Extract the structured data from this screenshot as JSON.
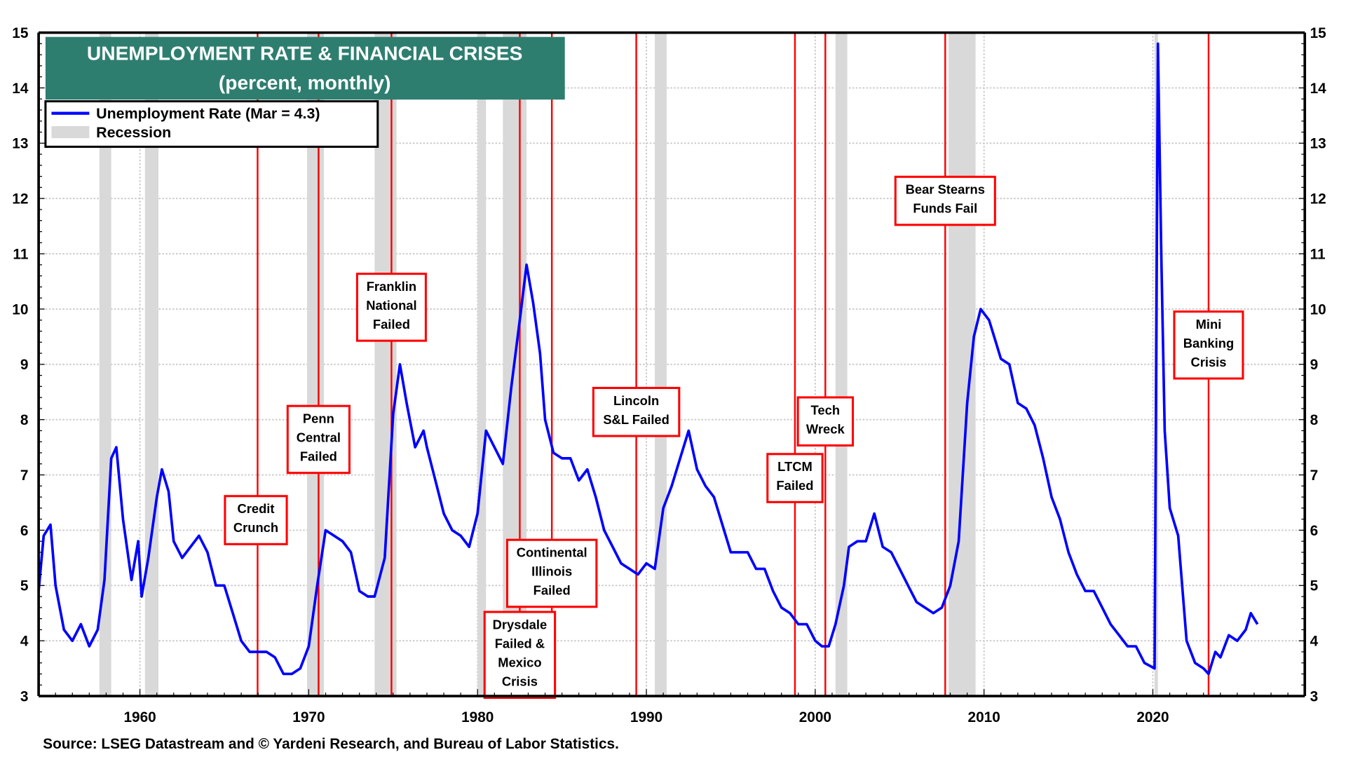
{
  "chart_data": {
    "type": "line",
    "title": "UNEMPLOYMENT RATE & FINANCIAL CRISES",
    "subtitle": "(percent, monthly)",
    "xlabel": "",
    "ylabel": "",
    "xlim": [
      1954,
      2029
    ],
    "ylim": [
      3,
      15
    ],
    "x_ticks": [
      "1960",
      "1970",
      "1980",
      "1990",
      "2000",
      "2010",
      "2020"
    ],
    "y_ticks": [
      "3",
      "4",
      "5",
      "6",
      "7",
      "8",
      "9",
      "10",
      "11",
      "12",
      "13",
      "14",
      "15"
    ],
    "grid": true,
    "legend_placement": "top-left",
    "legend": [
      "Unemployment Rate (Mar = 4.3)",
      "Recession"
    ],
    "colors": {
      "series": "#0000ff",
      "recession": "#d9d9d9",
      "crisis": "#ff0000",
      "title_bg": "#2e7e70"
    },
    "series": [
      {
        "name": "Unemployment Rate",
        "x": [
          1954.0,
          1954.3,
          1954.7,
          1955.0,
          1955.5,
          1956.0,
          1956.5,
          1957.0,
          1957.5,
          1957.9,
          1958.3,
          1958.6,
          1959.0,
          1959.5,
          1959.9,
          1960.1,
          1960.5,
          1961.0,
          1961.3,
          1961.7,
          1962.0,
          1962.5,
          1963.0,
          1963.5,
          1964.0,
          1964.5,
          1965.0,
          1965.5,
          1966.0,
          1966.5,
          1967.0,
          1967.5,
          1968.0,
          1968.5,
          1969.0,
          1969.5,
          1970.0,
          1970.5,
          1971.0,
          1971.5,
          1972.0,
          1972.5,
          1973.0,
          1973.5,
          1973.9,
          1974.5,
          1975.0,
          1975.4,
          1975.8,
          1976.3,
          1976.8,
          1977.0,
          1977.5,
          1978.0,
          1978.5,
          1979.0,
          1979.5,
          1980.0,
          1980.5,
          1981.0,
          1981.5,
          1982.0,
          1982.5,
          1982.9,
          1983.3,
          1983.7,
          1984.0,
          1984.5,
          1985.0,
          1985.5,
          1986.0,
          1986.5,
          1987.0,
          1987.5,
          1988.0,
          1988.5,
          1989.0,
          1989.5,
          1990.0,
          1990.5,
          1991.0,
          1991.5,
          1992.0,
          1992.5,
          1993.0,
          1993.5,
          1994.0,
          1994.5,
          1995.0,
          1995.5,
          1996.0,
          1996.5,
          1997.0,
          1997.5,
          1998.0,
          1998.5,
          1999.0,
          1999.5,
          2000.0,
          2000.4,
          2000.8,
          2001.2,
          2001.7,
          2002.0,
          2002.5,
          2003.0,
          2003.5,
          2004.0,
          2004.5,
          2005.0,
          2005.5,
          2006.0,
          2006.5,
          2007.0,
          2007.5,
          2008.0,
          2008.5,
          2009.0,
          2009.4,
          2009.8,
          2010.3,
          2010.7,
          2011.0,
          2011.5,
          2012.0,
          2012.5,
          2013.0,
          2013.5,
          2014.0,
          2014.5,
          2015.0,
          2015.5,
          2016.0,
          2016.5,
          2017.0,
          2017.5,
          2018.0,
          2018.5,
          2019.0,
          2019.5,
          2020.1,
          2020.3,
          2020.5,
          2020.7,
          2021.0,
          2021.5,
          2022.0,
          2022.5,
          2023.0,
          2023.3,
          2023.7,
          2024.0,
          2024.5,
          2025.0,
          2025.5,
          2025.8,
          2026.2
        ],
        "y": [
          4.9,
          5.9,
          6.1,
          5.0,
          4.2,
          4.0,
          4.3,
          3.9,
          4.2,
          5.1,
          7.3,
          7.5,
          6.2,
          5.1,
          5.8,
          4.8,
          5.5,
          6.6,
          7.1,
          6.7,
          5.8,
          5.5,
          5.7,
          5.9,
          5.6,
          5.0,
          5.0,
          4.5,
          4.0,
          3.8,
          3.8,
          3.8,
          3.7,
          3.4,
          3.4,
          3.5,
          3.9,
          5.0,
          6.0,
          5.9,
          5.8,
          5.6,
          4.9,
          4.8,
          4.8,
          5.5,
          8.1,
          9.0,
          8.3,
          7.5,
          7.8,
          7.5,
          6.9,
          6.3,
          6.0,
          5.9,
          5.7,
          6.3,
          7.8,
          7.5,
          7.2,
          8.6,
          9.8,
          10.8,
          10.1,
          9.2,
          8.0,
          7.4,
          7.3,
          7.3,
          6.9,
          7.1,
          6.6,
          6.0,
          5.7,
          5.4,
          5.3,
          5.2,
          5.4,
          5.3,
          6.4,
          6.8,
          7.3,
          7.8,
          7.1,
          6.8,
          6.6,
          6.1,
          5.6,
          5.6,
          5.6,
          5.3,
          5.3,
          4.9,
          4.6,
          4.5,
          4.3,
          4.3,
          4.0,
          3.9,
          3.9,
          4.3,
          5.0,
          5.7,
          5.8,
          5.8,
          6.3,
          5.7,
          5.6,
          5.3,
          5.0,
          4.7,
          4.6,
          4.5,
          4.6,
          5.0,
          5.8,
          8.3,
          9.5,
          10.0,
          9.8,
          9.4,
          9.1,
          9.0,
          8.3,
          8.2,
          7.9,
          7.3,
          6.6,
          6.2,
          5.6,
          5.2,
          4.9,
          4.9,
          4.6,
          4.3,
          4.1,
          3.9,
          3.9,
          3.6,
          3.5,
          14.8,
          11.0,
          7.8,
          6.4,
          5.9,
          4.0,
          3.6,
          3.5,
          3.4,
          3.8,
          3.7,
          4.1,
          4.0,
          4.2,
          4.5,
          4.3
        ]
      }
    ],
    "recessions": [
      [
        1957.6,
        1958.3
      ],
      [
        1960.3,
        1961.1
      ],
      [
        1969.9,
        1970.9
      ],
      [
        1973.9,
        1975.2
      ],
      [
        1980.0,
        1980.5
      ],
      [
        1981.5,
        1982.9
      ],
      [
        1990.5,
        1991.2
      ],
      [
        2001.2,
        2001.9
      ],
      [
        2007.9,
        2009.5
      ],
      [
        2020.1,
        2020.3
      ]
    ],
    "annotations": [
      {
        "x": 1966.97,
        "lines": [
          "Credit",
          "Crunch"
        ]
      },
      {
        "x": 1970.58,
        "lines": [
          "Penn",
          "Central",
          "Failed"
        ]
      },
      {
        "x": 1974.9,
        "lines": [
          "Franklin",
          "National",
          "Failed"
        ]
      },
      {
        "x": 1982.5,
        "lines": [
          "Drysdale",
          "Failed &",
          "Mexico",
          "Crisis"
        ]
      },
      {
        "x": 1984.4,
        "lines": [
          "Continental",
          "Illinois",
          "Failed"
        ]
      },
      {
        "x": 1989.4,
        "lines": [
          "Lincoln",
          "S&L Failed"
        ]
      },
      {
        "x": 1998.8,
        "lines": [
          "LTCM",
          "Failed"
        ]
      },
      {
        "x": 2000.6,
        "lines": [
          "Tech",
          "Wreck"
        ]
      },
      {
        "x": 2007.7,
        "lines": [
          "Bear Stearns",
          "Funds Fail"
        ]
      },
      {
        "x": 2023.3,
        "lines": [
          "Mini",
          "Banking",
          "Crisis"
        ]
      }
    ],
    "source": "Source: LSEG Datastream and © Yardeni Research, and Bureau of Labor Statistics."
  }
}
